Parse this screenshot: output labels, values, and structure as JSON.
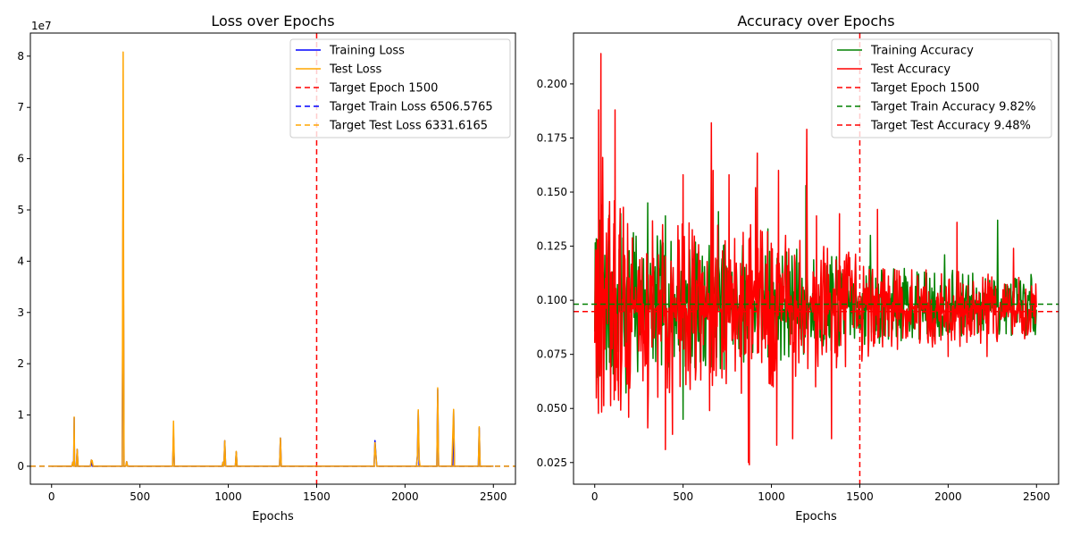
{
  "chart_data": [
    {
      "type": "line",
      "title": "Loss over Epochs",
      "xlabel": "Epochs",
      "ylabel": "",
      "y_offset_text": "1e7",
      "xlim": [
        -120,
        2625
      ],
      "ylim": [
        -3500000.0,
        84500000.0
      ],
      "x_ticks": [
        0,
        500,
        1000,
        1500,
        2000,
        2500
      ],
      "x_tick_labels": [
        "0",
        "500",
        "1000",
        "1500",
        "2000",
        "2500"
      ],
      "y_ticks": [
        0,
        10000000.0,
        20000000.0,
        30000000.0,
        40000000.0,
        50000000.0,
        60000000.0,
        70000000.0,
        80000000.0
      ],
      "y_tick_labels": [
        "0",
        "1",
        "2",
        "3",
        "4",
        "5",
        "6",
        "7",
        "8"
      ],
      "grid": false,
      "legend_position": "upper right",
      "baseline": 6500,
      "series": [
        {
          "name": "Training Loss",
          "color": "#0000ff",
          "style": "solid",
          "spikes": [
            [
              120,
              800000
            ],
            [
              128,
              9500000
            ],
            [
              145,
              3300000
            ],
            [
              225,
              1200000
            ],
            [
              405,
              57000000
            ],
            [
              425,
              900000
            ],
            [
              690,
              6000000
            ],
            [
              970,
              800000
            ],
            [
              980,
              5000000
            ],
            [
              1045,
              2800000
            ],
            [
              1295,
              5500000
            ],
            [
              1830,
              5000000
            ],
            [
              1835,
              2500000
            ],
            [
              2070,
              2000000
            ],
            [
              2075,
              10800000
            ],
            [
              2185,
              15000000
            ],
            [
              2275,
              11000000
            ],
            [
              2420,
              7500000
            ]
          ]
        },
        {
          "name": "Test Loss",
          "color": "#ffa500",
          "style": "solid",
          "spikes": [
            [
              120,
              800000
            ],
            [
              128,
              9600000
            ],
            [
              145,
              3300000
            ],
            [
              225,
              1200000
            ],
            [
              230,
              1100000
            ],
            [
              405,
              80800000
            ],
            [
              425,
              900000
            ],
            [
              690,
              8800000
            ],
            [
              970,
              800000
            ],
            [
              980,
              5000000
            ],
            [
              1045,
              2900000
            ],
            [
              1295,
              5500000
            ],
            [
              1830,
              4600000
            ],
            [
              1835,
              2300000
            ],
            [
              2070,
              1800000
            ],
            [
              2075,
              11000000
            ],
            [
              2080,
              1500000
            ],
            [
              2185,
              15300000
            ],
            [
              2270,
              5800000
            ],
            [
              2275,
              11100000
            ],
            [
              2420,
              7700000
            ]
          ]
        }
      ],
      "reference_lines": [
        {
          "name": "Target Epoch 1500",
          "orientation": "vertical",
          "value": 1500,
          "color": "#ff0000",
          "style": "dashed"
        },
        {
          "name": "Target Train Loss 6506.5765",
          "orientation": "horizontal",
          "value": 6506.5765,
          "color": "#0000ff",
          "style": "dashed"
        },
        {
          "name": "Target Test Loss 6331.6165",
          "orientation": "horizontal",
          "value": 6331.6165,
          "color": "#ffa500",
          "style": "dashed"
        }
      ],
      "legend": [
        "Training Loss",
        "Test Loss",
        "Target Epoch 1500",
        "Target Train Loss 6506.5765",
        "Target Test Loss 6331.6165"
      ]
    },
    {
      "type": "line",
      "title": "Accuracy over Epochs",
      "xlabel": "Epochs",
      "ylabel": "",
      "xlim": [
        -120,
        2625
      ],
      "ylim": [
        0.015,
        0.2235
      ],
      "x_ticks": [
        0,
        500,
        1000,
        1500,
        2000,
        2500
      ],
      "x_tick_labels": [
        "0",
        "500",
        "1000",
        "1500",
        "2000",
        "2500"
      ],
      "y_ticks": [
        0.025,
        0.05,
        0.075,
        0.1,
        0.125,
        0.15,
        0.175,
        0.2
      ],
      "y_tick_labels": [
        "0.025",
        "0.050",
        "0.075",
        "0.100",
        "0.125",
        "0.150",
        "0.175",
        "0.200"
      ],
      "grid": false,
      "legend_position": "upper right",
      "series": [
        {
          "name": "Training Accuracy",
          "color": "#008000",
          "style": "solid",
          "x_start": 0,
          "x_end": 2500,
          "center": 0.098,
          "envelope": [
            [
              0,
              0.04
            ],
            [
              100,
              0.045
            ],
            [
              400,
              0.03
            ],
            [
              900,
              0.03
            ],
            [
              1200,
              0.025
            ],
            [
              1500,
              0.02
            ],
            [
              1600,
              0.018
            ],
            [
              2000,
              0.016
            ],
            [
              2500,
              0.014
            ]
          ],
          "peaks": [
            [
              20,
              0.061
            ],
            [
              40,
              0.144
            ],
            [
              300,
              0.145
            ],
            [
              400,
              0.139
            ],
            [
              500,
              0.045
            ],
            [
              615,
              0.072
            ],
            [
              660,
              0.16
            ],
            [
              700,
              0.141
            ],
            [
              920,
              0.167
            ],
            [
              980,
              0.133
            ],
            [
              1195,
              0.153
            ],
            [
              1560,
              0.13
            ],
            [
              1980,
              0.121
            ],
            [
              2280,
              0.137
            ]
          ]
        },
        {
          "name": "Test Accuracy",
          "color": "#ff0000",
          "style": "solid",
          "x_start": 0,
          "x_end": 2500,
          "center": 0.096,
          "envelope": [
            [
              0,
              0.055
            ],
            [
              100,
              0.055
            ],
            [
              400,
              0.04
            ],
            [
              900,
              0.04
            ],
            [
              1200,
              0.032
            ],
            [
              1500,
              0.025
            ],
            [
              1600,
              0.02
            ],
            [
              2000,
              0.018
            ],
            [
              2500,
              0.014
            ]
          ],
          "peaks": [
            [
              15,
              0.128
            ],
            [
              18,
              0.072
            ],
            [
              22,
              0.188
            ],
            [
              30,
              0.065
            ],
            [
              35,
              0.214
            ],
            [
              40,
              0.055
            ],
            [
              45,
              0.166
            ],
            [
              60,
              0.11
            ],
            [
              110,
              0.054
            ],
            [
              115,
              0.188
            ],
            [
              300,
              0.041
            ],
            [
              400,
              0.031
            ],
            [
              440,
              0.038
            ],
            [
              500,
              0.158
            ],
            [
              650,
              0.049
            ],
            [
              660,
              0.182
            ],
            [
              670,
              0.16
            ],
            [
              760,
              0.158
            ],
            [
              830,
              0.057
            ],
            [
              870,
              0.025
            ],
            [
              875,
              0.024
            ],
            [
              910,
              0.152
            ],
            [
              920,
              0.168
            ],
            [
              1010,
              0.06
            ],
            [
              1030,
              0.033
            ],
            [
              1040,
              0.16
            ],
            [
              1120,
              0.036
            ],
            [
              1200,
              0.179
            ],
            [
              1250,
              0.06
            ],
            [
              1255,
              0.139
            ],
            [
              1340,
              0.036
            ],
            [
              1385,
              0.14
            ],
            [
              1600,
              0.142
            ],
            [
              2000,
              0.074
            ],
            [
              2050,
              0.136
            ],
            [
              2220,
              0.074
            ],
            [
              2370,
              0.124
            ]
          ]
        }
      ],
      "reference_lines": [
        {
          "name": "Target Epoch 1500",
          "orientation": "vertical",
          "value": 1500,
          "color": "#ff0000",
          "style": "dashed"
        },
        {
          "name": "Target Train Accuracy 9.82%",
          "orientation": "horizontal",
          "value": 0.0982,
          "color": "#008000",
          "style": "dashed"
        },
        {
          "name": "Target Test Accuracy 9.48%",
          "orientation": "horizontal",
          "value": 0.0948,
          "color": "#ff0000",
          "style": "dashed"
        }
      ],
      "legend": [
        "Training Accuracy",
        "Test Accuracy",
        "Target Epoch 1500",
        "Target Train Accuracy 9.82%",
        "Target Test Accuracy 9.48%"
      ]
    }
  ]
}
